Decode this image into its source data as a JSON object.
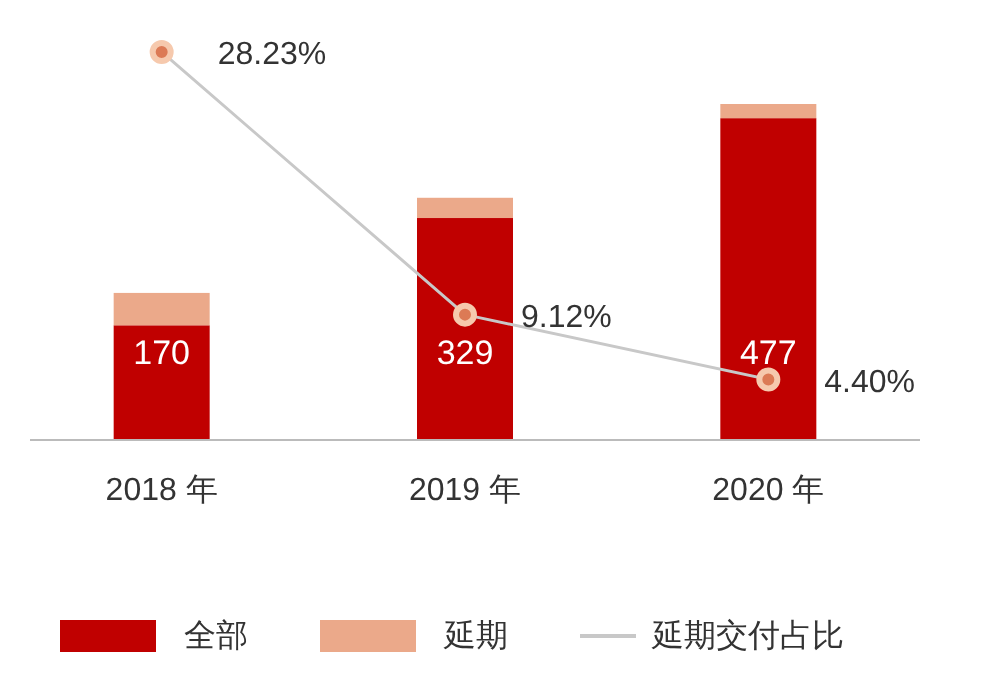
{
  "chart_data": {
    "type": "bar",
    "stacked": true,
    "categories": [
      "2018 年",
      "2019 年",
      "2020 年"
    ],
    "series": [
      {
        "name": "全部",
        "color": "#c00000",
        "values": [
          170,
          329,
          477
        ],
        "value_labels": [
          "170",
          "329",
          "477"
        ]
      },
      {
        "name": "延期",
        "color": "#eba98a",
        "values": [
          48,
          30,
          21
        ]
      },
      {
        "name": "延期交付占比",
        "type": "line",
        "axis": "y2",
        "color": "#c8c8c8",
        "values": [
          28.23,
          9.12,
          4.4
        ],
        "value_labels": [
          "28.23%",
          "9.12%",
          "4.40%"
        ]
      }
    ],
    "marker": "circle",
    "legend": "bottom",
    "tick_labels": "x"
  }
}
